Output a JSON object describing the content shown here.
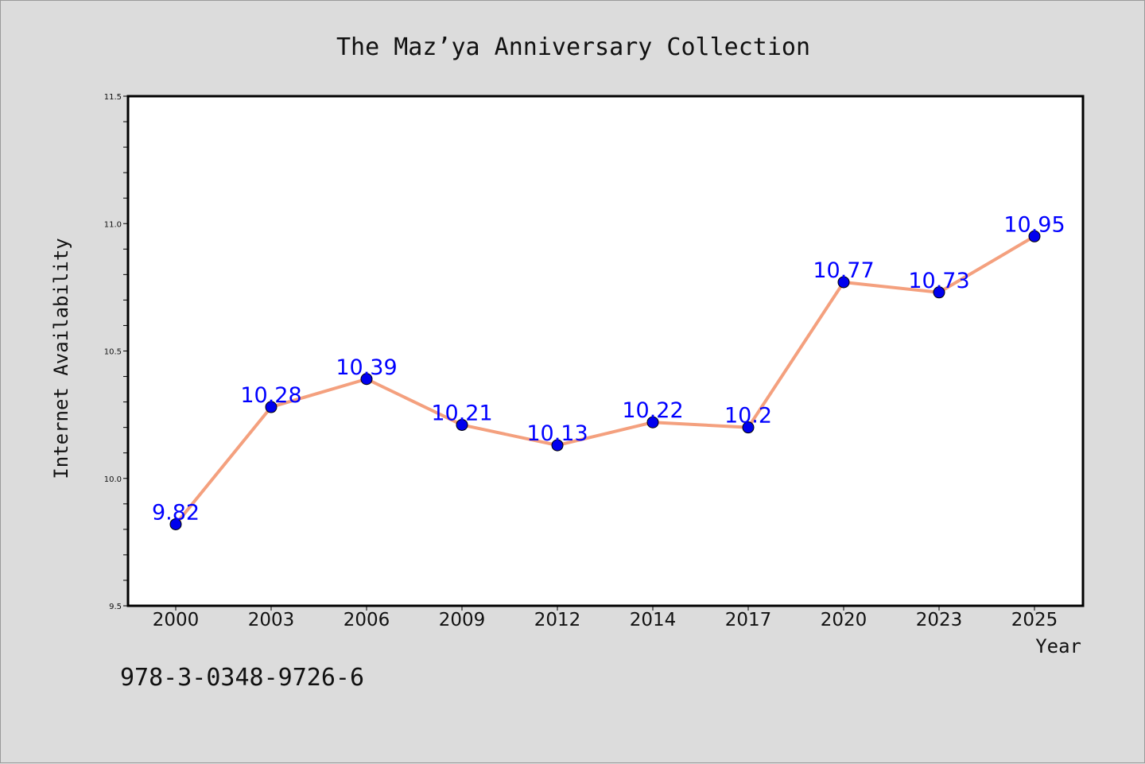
{
  "page": {
    "isbn": "978-3-0348-9726-6"
  },
  "chart_data": {
    "type": "line",
    "title": "The Maz’ya Anniversary Collection",
    "xlabel": "Year",
    "ylabel": "Internet Availability",
    "categories": [
      "2000",
      "2003",
      "2006",
      "2009",
      "2012",
      "2014",
      "2017",
      "2020",
      "2023",
      "2025"
    ],
    "values": [
      9.82,
      10.28,
      10.39,
      10.21,
      10.13,
      10.22,
      10.2,
      10.77,
      10.73,
      10.95
    ],
    "data_labels": [
      "9.82",
      "10.28",
      "10.39",
      "10.21",
      "10.13",
      "10.22",
      "10.2",
      "10.77",
      "10.73",
      "10.95"
    ],
    "ylim": [
      9.5,
      11.5
    ],
    "yticks": [
      "9.5",
      "10.0",
      "10.5",
      "11.0",
      "11.5"
    ],
    "grid": false,
    "colors": {
      "line": "#f4a07e",
      "marker": "#0000ee",
      "label": "#0000ff",
      "plot_bg": "#ffffff",
      "figure_bg": "#dcdcdc"
    }
  }
}
